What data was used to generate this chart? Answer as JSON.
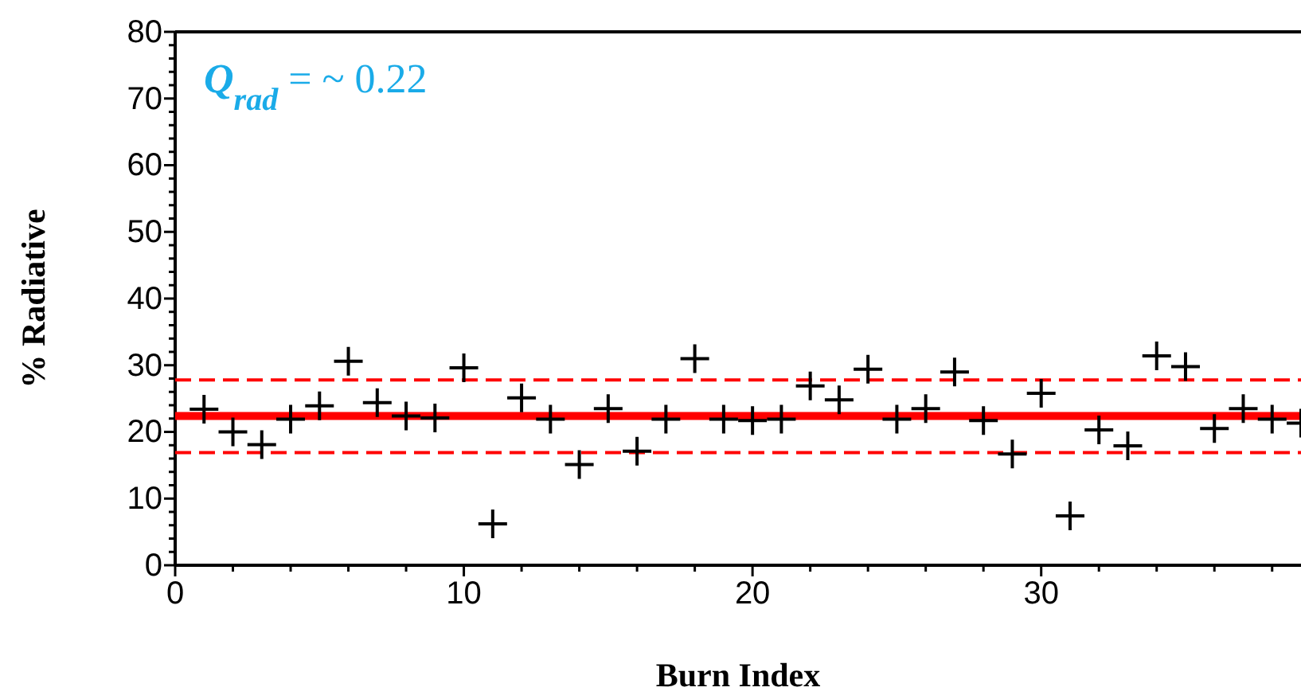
{
  "chart_data": {
    "type": "scatter",
    "xlabel": "Burn Index",
    "ylabel": "% Radiative",
    "marker": "cross",
    "grid": false,
    "annotations": [
      "Q$_{rad}$ = ~ 0.22"
    ],
    "x": [
      1,
      2,
      3,
      4,
      5,
      6,
      7,
      8,
      9,
      10,
      11,
      12,
      13,
      14,
      15,
      16,
      17,
      18,
      19,
      20,
      21,
      22,
      23,
      24,
      25,
      26,
      27,
      28,
      29,
      30,
      31,
      32,
      33,
      34,
      35,
      36,
      37,
      38,
      39
    ],
    "series": [
      {
        "color": "#000000",
        "values": [
          23.4,
          20,
          18.1,
          21.9,
          23.9,
          30.6,
          24.4,
          22.4,
          22.1,
          29.6,
          6.2,
          25.1,
          21.9,
          15.1,
          23.5,
          17.1,
          21.9,
          31,
          21.9,
          21.7,
          21.9,
          26.9,
          24.8,
          29.4,
          21.9,
          23.5,
          29,
          21.7,
          16.7,
          25.8,
          7.4,
          20.3,
          17.9,
          31.4,
          29.8,
          20.5,
          23.5,
          21.9,
          21.3
        ]
      }
    ],
    "ref_lines": [
      {
        "axis": "y",
        "value": 22.4,
        "color": "#ff0000",
        "line_style": "solid"
      },
      {
        "axis": "y",
        "value": 27.8,
        "color": "#ff0000",
        "line_style": "dashed"
      },
      {
        "axis": "y",
        "value": 16.9,
        "color": "#ff0000",
        "line_style": "dashed"
      }
    ],
    "xlim": [
      0,
      39
    ],
    "ylim": [
      0,
      80
    ],
    "xticks": [
      0,
      {
        "value": 2,
        "label": null
      },
      {
        "value": 4,
        "label": null
      },
      {
        "value": 6,
        "label": null
      },
      {
        "value": 8,
        "label": null
      },
      10,
      {
        "value": 12,
        "label": null
      },
      {
        "value": 14,
        "label": null
      },
      {
        "value": 16,
        "label": null
      },
      {
        "value": 18,
        "label": null
      },
      20,
      {
        "value": 22,
        "label": null
      },
      {
        "value": 24,
        "label": null
      },
      {
        "value": 26,
        "label": null
      },
      {
        "value": 28,
        "label": null
      },
      30,
      {
        "value": 32,
        "label": null
      },
      {
        "value": 34,
        "label": null
      },
      {
        "value": 36,
        "label": null
      },
      {
        "value": 38,
        "label": null
      }
    ],
    "yticks": [
      0,
      {
        "value": 2,
        "label": null
      },
      {
        "value": 4,
        "label": null
      },
      {
        "value": 6,
        "label": null
      },
      {
        "value": 8,
        "label": null
      },
      10,
      {
        "value": 12,
        "label": null
      },
      {
        "value": 14,
        "label": null
      },
      {
        "value": 16,
        "label": null
      },
      {
        "value": 18,
        "label": null
      },
      20,
      {
        "value": 22,
        "label": null
      },
      {
        "value": 24,
        "label": null
      },
      {
        "value": 26,
        "label": null
      },
      {
        "value": 28,
        "label": null
      },
      30,
      {
        "value": 32,
        "label": null
      },
      {
        "value": 34,
        "label": null
      },
      {
        "value": 36,
        "label": null
      },
      {
        "value": 38,
        "label": null
      },
      40,
      {
        "value": 42,
        "label": null
      },
      {
        "value": 44,
        "label": null
      },
      {
        "value": 46,
        "label": null
      },
      {
        "value": 48,
        "label": null
      },
      50,
      {
        "value": 52,
        "label": null
      },
      {
        "value": 54,
        "label": null
      },
      {
        "value": 56,
        "label": null
      },
      {
        "value": 58,
        "label": null
      },
      60,
      {
        "value": 62,
        "label": null
      },
      {
        "value": 64,
        "label": null
      },
      {
        "value": 66,
        "label": null
      },
      {
        "value": 68,
        "label": null
      },
      70,
      {
        "value": 72,
        "label": null
      },
      {
        "value": 74,
        "label": null
      },
      {
        "value": 76,
        "label": null
      },
      {
        "value": 78,
        "label": null
      },
      80
    ]
  }
}
